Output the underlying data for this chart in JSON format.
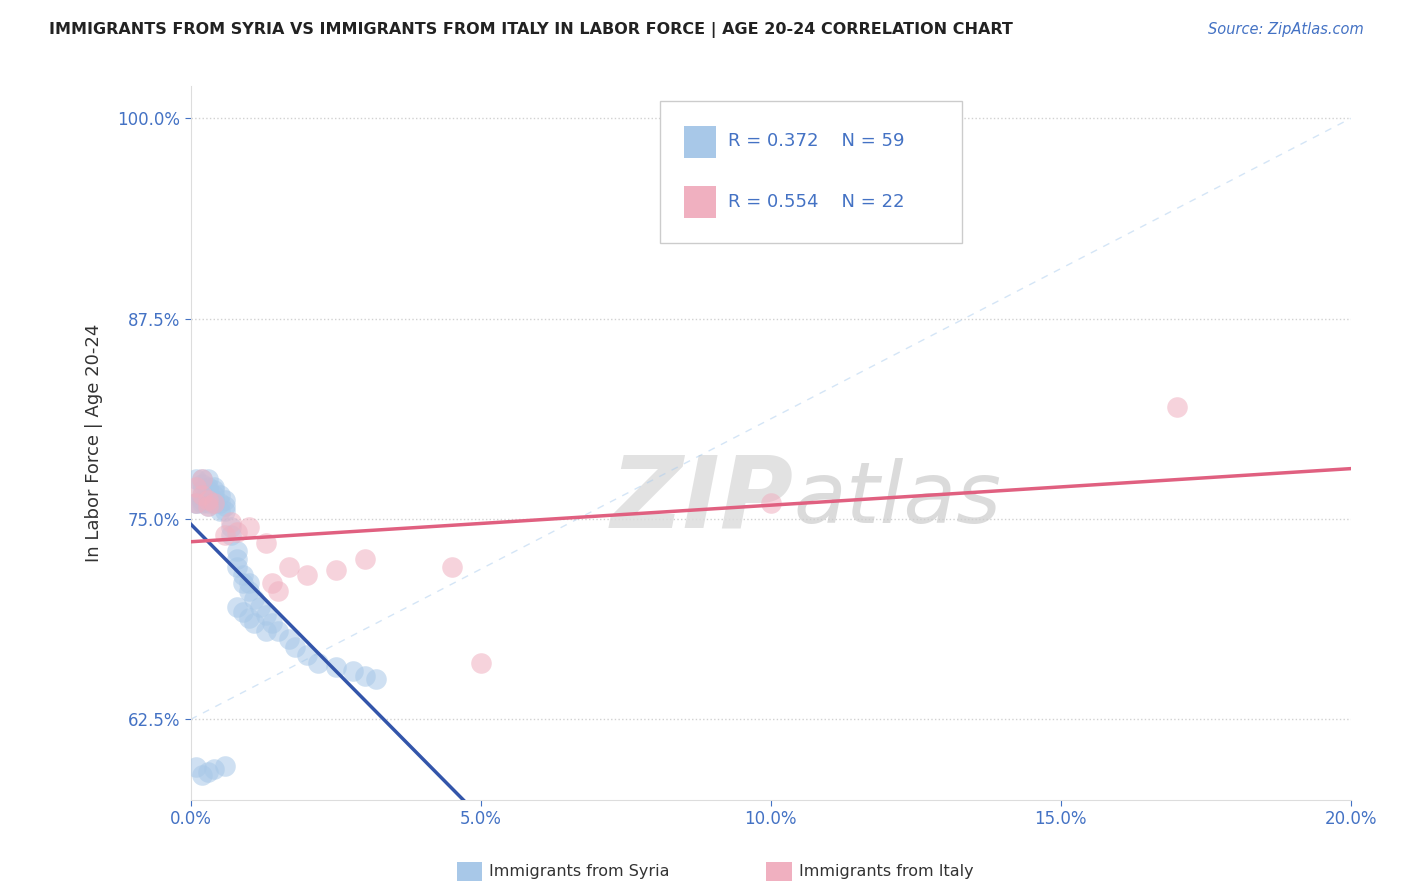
{
  "title": "IMMIGRANTS FROM SYRIA VS IMMIGRANTS FROM ITALY IN LABOR FORCE | AGE 20-24 CORRELATION CHART",
  "source": "Source: ZipAtlas.com",
  "ylabel": "In Labor Force | Age 20-24",
  "R_syria": 0.372,
  "N_syria": 59,
  "R_italy": 0.554,
  "N_italy": 22,
  "color_syria": "#A8C8E8",
  "color_italy": "#F0B0C0",
  "color_syria_line": "#3355AA",
  "color_italy_line": "#E06080",
  "xlim": [
    0.0,
    0.2
  ],
  "ylim": [
    0.575,
    1.02
  ],
  "xticks": [
    0.0,
    0.05,
    0.1,
    0.15,
    0.2
  ],
  "xtick_labels": [
    "0.0%",
    "5.0%",
    "10.0%",
    "15.0%",
    "20.0%"
  ],
  "yticks": [
    0.625,
    0.75,
    0.875,
    1.0
  ],
  "ytick_labels": [
    "62.5%",
    "75.0%",
    "87.5%",
    "100.0%"
  ],
  "legend_box_color_syria": "#A8C8E8",
  "legend_box_color_italy": "#F0B0C0",
  "legend_text_color": "#4472C4",
  "background_color": "#FFFFFF",
  "grid_color": "#CCCCCC",
  "watermark_zip": "ZIP",
  "watermark_atlas": "atlas",
  "syria_x": [
    0.001,
    0.001,
    0.001,
    0.002,
    0.002,
    0.002,
    0.002,
    0.002,
    0.002,
    0.003,
    0.003,
    0.003,
    0.003,
    0.003,
    0.003,
    0.003,
    0.004,
    0.004,
    0.004,
    0.004,
    0.004,
    0.005,
    0.005,
    0.005,
    0.006,
    0.006,
    0.006,
    0.007,
    0.007,
    0.008,
    0.008,
    0.008,
    0.009,
    0.009,
    0.01,
    0.01,
    0.011,
    0.012,
    0.013,
    0.014,
    0.015,
    0.017,
    0.018,
    0.02,
    0.022,
    0.025,
    0.028,
    0.03,
    0.032,
    0.008,
    0.009,
    0.01,
    0.011,
    0.013,
    0.001,
    0.002,
    0.003,
    0.004,
    0.006
  ],
  "syria_y": [
    0.76,
    0.76,
    0.775,
    0.76,
    0.762,
    0.765,
    0.768,
    0.772,
    0.775,
    0.758,
    0.76,
    0.763,
    0.765,
    0.768,
    0.77,
    0.775,
    0.76,
    0.762,
    0.765,
    0.768,
    0.77,
    0.755,
    0.76,
    0.765,
    0.755,
    0.758,
    0.762,
    0.74,
    0.745,
    0.72,
    0.725,
    0.73,
    0.71,
    0.715,
    0.705,
    0.71,
    0.7,
    0.695,
    0.69,
    0.685,
    0.68,
    0.675,
    0.67,
    0.665,
    0.66,
    0.658,
    0.655,
    0.652,
    0.65,
    0.695,
    0.692,
    0.688,
    0.685,
    0.68,
    0.595,
    0.59,
    0.592,
    0.594,
    0.596
  ],
  "italy_x": [
    0.001,
    0.001,
    0.002,
    0.002,
    0.003,
    0.003,
    0.004,
    0.006,
    0.007,
    0.008,
    0.01,
    0.013,
    0.014,
    0.015,
    0.017,
    0.02,
    0.025,
    0.03,
    0.045,
    0.05,
    0.1,
    0.17
  ],
  "italy_y": [
    0.77,
    0.76,
    0.765,
    0.775,
    0.762,
    0.758,
    0.76,
    0.74,
    0.748,
    0.742,
    0.745,
    0.735,
    0.71,
    0.705,
    0.72,
    0.715,
    0.718,
    0.725,
    0.72,
    0.66,
    0.76,
    0.82
  ]
}
